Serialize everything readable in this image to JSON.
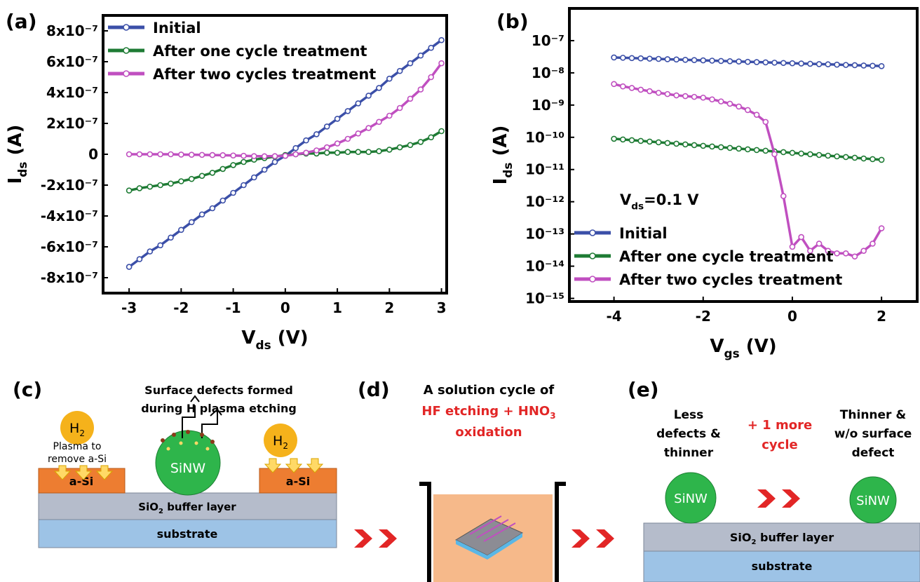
{
  "chart_data": [
    {
      "type": "line",
      "panel": "(a)",
      "x_label": {
        "main": "V",
        "sub": "ds",
        "rest": " (V)"
      },
      "y_label": {
        "main": "I",
        "sub": "ds",
        "rest": " (A)"
      },
      "x": [
        -3,
        -2.8,
        -2.6,
        -2.4,
        -2.2,
        -2,
        -1.8,
        -1.6,
        -1.4,
        -1.2,
        -1,
        -0.8,
        -0.6,
        -0.4,
        -0.2,
        0,
        0.2,
        0.4,
        0.6,
        0.8,
        1,
        1.2,
        1.4,
        1.6,
        1.8,
        2,
        2.2,
        2.4,
        2.6,
        2.8,
        3
      ],
      "series": [
        {
          "name": "Initial",
          "color": "#3b4fa8",
          "values": [
            -7.3e-07,
            -6.8e-07,
            -6.3e-07,
            -5.9e-07,
            -5.4e-07,
            -4.9e-07,
            -4.4e-07,
            -3.9e-07,
            -3.5e-07,
            -3e-07,
            -2.5e-07,
            -2e-07,
            -1.5e-07,
            -1e-07,
            -5e-08,
            -1e-08,
            4e-08,
            9e-08,
            1.3e-07,
            1.8e-07,
            2.3e-07,
            2.8e-07,
            3.3e-07,
            3.8e-07,
            4.3e-07,
            4.9e-07,
            5.4e-07,
            5.9e-07,
            6.4e-07,
            6.9e-07,
            7.4e-07
          ]
        },
        {
          "name": "After one cycle treatment",
          "color": "#1e7b34",
          "values": [
            -2.35e-07,
            -2.2e-07,
            -2.1e-07,
            -2e-07,
            -1.9e-07,
            -1.75e-07,
            -1.6e-07,
            -1.4e-07,
            -1.2e-07,
            -9.5e-08,
            -7e-08,
            -5e-08,
            -3.5e-08,
            -2.5e-08,
            -1.5e-08,
            -5e-09,
            0,
            5e-09,
            5e-09,
            1e-08,
            1e-08,
            1.5e-08,
            1.5e-08,
            1.5e-08,
            2e-08,
            3e-08,
            4.5e-08,
            6e-08,
            8e-08,
            1.1e-07,
            1.5e-07
          ]
        },
        {
          "name": "After two cycles treatment",
          "color": "#c04fc0",
          "values": [
            0,
            0,
            0,
            0,
            0,
            -2e-09,
            -3e-09,
            -4e-09,
            -5e-09,
            -6e-09,
            -8e-09,
            -1e-08,
            -1.2e-08,
            -1.3e-08,
            -1.2e-08,
            -1e-08,
            0,
            1e-08,
            2.5e-08,
            4.5e-08,
            7e-08,
            1e-07,
            1.35e-07,
            1.7e-07,
            2.1e-07,
            2.5e-07,
            3e-07,
            3.6e-07,
            4.2e-07,
            5e-07,
            5.9e-07
          ]
        }
      ],
      "xlim": [
        -3.5,
        3.1
      ],
      "ylim": [
        -9e-07,
        9e-07
      ],
      "xticks": [
        -3,
        -2,
        -1,
        0,
        1,
        2,
        3
      ],
      "yticks": [
        {
          "value": -8e-07,
          "label": "-8x10⁻⁷"
        },
        {
          "value": -6e-07,
          "label": "-6x10⁻⁷"
        },
        {
          "value": -4e-07,
          "label": "-4x10⁻⁷"
        },
        {
          "value": -2e-07,
          "label": "-2x10⁻⁷"
        },
        0,
        {
          "value": 2e-07,
          "label": "2x10⁻⁷"
        },
        {
          "value": 4e-07,
          "label": "4x10⁻⁷"
        },
        {
          "value": 6e-07,
          "label": "6x10⁻⁷"
        },
        {
          "value": 8e-07,
          "label": "8x10⁻⁷"
        }
      ],
      "log_y": false,
      "legend": "upper left"
    },
    {
      "type": "line",
      "panel": "(b)",
      "x_label": {
        "main": "V",
        "sub": "gs",
        "rest": " (V)"
      },
      "y_label": {
        "main": "I",
        "sub": "ds",
        "rest": " (A)"
      },
      "annotation": {
        "main": "V",
        "sub": "ds",
        "rest": "=0.1 V"
      },
      "x": [
        -4,
        -3.8,
        -3.6,
        -3.4,
        -3.2,
        -3,
        -2.8,
        -2.6,
        -2.4,
        -2.2,
        -2,
        -1.8,
        -1.6,
        -1.4,
        -1.2,
        -1,
        -0.8,
        -0.6,
        -0.4,
        -0.2,
        0,
        0.2,
        0.4,
        0.6,
        0.8,
        1,
        1.2,
        1.4,
        1.6,
        1.8,
        2
      ],
      "series": [
        {
          "name": "Initial",
          "color": "#3b4fa8",
          "values": [
            3e-08,
            2.94e-08,
            2.88e-08,
            2.82e-08,
            2.76e-08,
            2.71e-08,
            2.65e-08,
            2.6e-08,
            2.54e-08,
            2.49e-08,
            2.44e-08,
            2.39e-08,
            2.34e-08,
            2.3e-08,
            2.25e-08,
            2.2e-08,
            2.16e-08,
            2.12e-08,
            2.07e-08,
            2.03e-08,
            1.99e-08,
            1.95e-08,
            1.91e-08,
            1.87e-08,
            1.84e-08,
            1.8e-08,
            1.76e-08,
            1.73e-08,
            1.69e-08,
            1.66e-08,
            1.62e-08
          ]
        },
        {
          "name": "After one cycle treatment",
          "color": "#1e7b34",
          "values": [
            9e-11,
            8.56e-11,
            8.14e-11,
            7.74e-11,
            7.36e-11,
            7e-11,
            6.66e-11,
            6.33e-11,
            6.02e-11,
            5.73e-11,
            5.45e-11,
            5.18e-11,
            4.93e-11,
            4.68e-11,
            4.45e-11,
            4.24e-11,
            4.03e-11,
            3.83e-11,
            3.64e-11,
            3.46e-11,
            3.29e-11,
            3.13e-11,
            2.98e-11,
            2.83e-11,
            2.69e-11,
            2.56e-11,
            2.44e-11,
            2.32e-11,
            2.2e-11,
            2.1e-11,
            2e-11
          ]
        },
        {
          "name": "After two cycles treatment",
          "color": "#c04fc0",
          "values": [
            4.5e-09,
            3.8e-09,
            3.4e-09,
            3e-09,
            2.7e-09,
            2.4e-09,
            2.2e-09,
            2e-09,
            1.9e-09,
            1.8e-09,
            1.7e-09,
            1.5e-09,
            1.3e-09,
            1.1e-09,
            9e-10,
            7e-10,
            5e-10,
            3e-10,
            3e-11,
            1.5e-12,
            4e-14,
            8e-14,
            3e-14,
            5e-14,
            3e-14,
            2.5e-14,
            2.5e-14,
            2e-14,
            3e-14,
            5e-14,
            1.5e-13
          ]
        }
      ],
      "xlim": [
        -5,
        2.8
      ],
      "ylim": [
        8e-16,
        1e-06
      ],
      "xticks": [
        -4,
        -2,
        0,
        2
      ],
      "yticks": [
        {
          "value": 1e-15,
          "label": "10⁻¹⁵"
        },
        {
          "value": 1e-14,
          "label": "10⁻¹⁴"
        },
        {
          "value": 1e-13,
          "label": "10⁻¹³"
        },
        {
          "value": 1e-12,
          "label": "10⁻¹²"
        },
        {
          "value": 1e-11,
          "label": "10⁻¹¹"
        },
        {
          "value": 1e-10,
          "label": "10⁻¹⁰"
        },
        {
          "value": 1e-09,
          "label": "10⁻⁹"
        },
        {
          "value": 1e-08,
          "label": "10⁻⁸"
        },
        {
          "value": 1e-07,
          "label": "10⁻⁷"
        }
      ],
      "log_y": true,
      "legend": "lower left"
    }
  ],
  "diagram_c": {
    "panel": "(c)",
    "title_lines": [
      "Surface defects formed",
      "during H plasma etching"
    ],
    "gas_left": {
      "main": "H",
      "sub": "2"
    },
    "gas_right": {
      "main": "H",
      "sub": "2"
    },
    "plasma_lines": [
      "Plasma to",
      "remove a-Si"
    ],
    "wire": "SiNW",
    "asi_left": "a-Si",
    "asi_right": "a-Si",
    "buffer": {
      "main": "SiO",
      "sub": "2",
      "rest": " buffer layer"
    },
    "substrate": "substrate"
  },
  "diagram_d": {
    "panel": "(d)",
    "line1": "A solution cycle of",
    "line2": {
      "main": "HF etching + HNO",
      "sub": "3"
    },
    "line3": "oxidation"
  },
  "diagram_e": {
    "panel": "(e)",
    "left_lines": [
      "Less",
      "defects &",
      "thinner"
    ],
    "middle_lines": [
      "+ 1 more",
      "cycle"
    ],
    "right_lines": [
      "Thinner &",
      "w/o surface",
      "defect"
    ],
    "wire_left": "SiNW",
    "wire_right": "SiNW",
    "buffer": {
      "main": "SiO",
      "sub": "2",
      "rest": " buffer layer"
    },
    "substrate": "substrate"
  }
}
